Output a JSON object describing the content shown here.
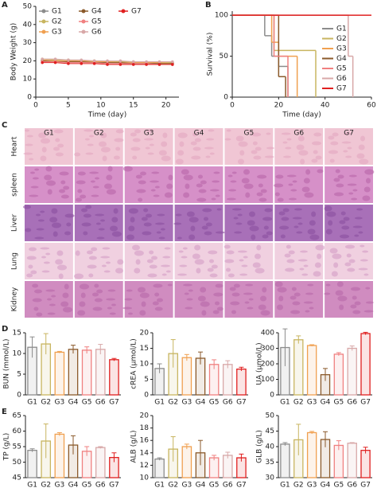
{
  "panel_labels": [
    "A",
    "B",
    "C",
    "D",
    "E"
  ],
  "histology": {
    "columns": [
      "G1",
      "G2",
      "G3",
      "G4",
      "G5",
      "G6",
      "G7"
    ],
    "rows": [
      "Heart",
      "spleen",
      "Liver",
      "Lung",
      "Kidney"
    ]
  },
  "chart_data": [
    {
      "type": "line",
      "xlabel": "Time (day)",
      "ylabel": "Body Weight (g)",
      "x": [
        1,
        3,
        5,
        7,
        9,
        11,
        13,
        15,
        17,
        19,
        21
      ],
      "xlim": [
        0,
        22
      ],
      "xticks": [
        0,
        5,
        10,
        15,
        20
      ],
      "ylim": [
        0,
        50
      ],
      "yticks": [
        0,
        10,
        20,
        30,
        40,
        50
      ],
      "series": [
        {
          "name": "G1",
          "color": "#8c8c8c",
          "values": [
            20,
            20,
            20,
            19.5,
            19.5,
            19,
            19,
            19,
            19,
            18.5,
            19
          ]
        },
        {
          "name": "G2",
          "color": "#c8b560",
          "values": [
            21,
            20.5,
            20.5,
            20,
            20,
            19.5,
            19.5,
            19.5,
            19,
            19,
            19
          ]
        },
        {
          "name": "G3",
          "color": "#f0a050",
          "values": [
            20.5,
            20,
            20,
            20,
            19.5,
            19.5,
            19,
            19,
            19,
            19,
            18.5
          ]
        },
        {
          "name": "G4",
          "color": "#8b5a2b",
          "values": [
            20,
            19.5,
            19.5,
            19.5,
            19,
            19,
            19,
            18.5,
            18.5,
            18.5,
            18.5
          ]
        },
        {
          "name": "G5",
          "color": "#f08080",
          "values": [
            19.5,
            19.5,
            19,
            19,
            19,
            18.5,
            18.5,
            18.5,
            18.5,
            18,
            18
          ]
        },
        {
          "name": "G6",
          "color": "#d8a8a8",
          "values": [
            21,
            21,
            20.5,
            20.5,
            20,
            20,
            20,
            19.5,
            19.5,
            19.5,
            19.5
          ]
        },
        {
          "name": "G7",
          "color": "#e02020",
          "values": [
            19,
            19,
            18.5,
            18.5,
            18.5,
            18,
            18,
            18,
            18,
            18,
            18
          ]
        }
      ]
    },
    {
      "type": "step",
      "xlabel": "Time (day)",
      "ylabel": "Survival (%)",
      "xlim": [
        0,
        60
      ],
      "xticks": [
        0,
        20,
        40,
        60
      ],
      "ylim": [
        0,
        105
      ],
      "yticks": [
        0,
        50,
        100
      ],
      "series": [
        {
          "name": "G1",
          "color": "#8c8c8c",
          "x": [
            0,
            14,
            17,
            20,
            24
          ],
          "values": [
            100,
            75,
            50,
            37.5,
            0
          ]
        },
        {
          "name": "G2",
          "color": "#c8b560",
          "x": [
            0,
            18,
            36
          ],
          "values": [
            100,
            57,
            0
          ]
        },
        {
          "name": "G3",
          "color": "#f0a050",
          "x": [
            0,
            17,
            20,
            28
          ],
          "values": [
            100,
            67,
            50,
            0
          ]
        },
        {
          "name": "G4",
          "color": "#8b5a2b",
          "x": [
            0,
            20,
            23
          ],
          "values": [
            100,
            25,
            0
          ]
        },
        {
          "name": "G5",
          "color": "#f08080",
          "x": [
            0,
            18,
            24
          ],
          "values": [
            100,
            50,
            0
          ]
        },
        {
          "name": "G6",
          "color": "#d8a8a8",
          "x": [
            0,
            50,
            52
          ],
          "values": [
            100,
            50,
            0
          ]
        },
        {
          "name": "G7",
          "color": "#e02020",
          "x": [
            0,
            60
          ],
          "values": [
            100,
            100
          ]
        }
      ]
    },
    {
      "type": "bar",
      "ylabel": "BUN (mmol/L)",
      "categories": [
        "G1",
        "G2",
        "G3",
        "G4",
        "G5",
        "G6",
        "G7"
      ],
      "colors": [
        "#8c8c8c",
        "#c8b560",
        "#f0a050",
        "#8b5a2b",
        "#f08080",
        "#d8a8a8",
        "#e02020"
      ],
      "values": [
        11.5,
        12.3,
        10.3,
        11,
        10.8,
        11,
        8.5
      ],
      "errors": [
        2.5,
        2.5,
        0.2,
        1,
        0.8,
        1.2,
        0.3
      ],
      "ylim": [
        0,
        15
      ],
      "yticks": [
        0,
        5,
        10,
        15
      ]
    },
    {
      "type": "bar",
      "ylabel": "cREA (μmol/L)",
      "categories": [
        "G1",
        "G2",
        "G3",
        "G4",
        "G5",
        "G6",
        "G7"
      ],
      "colors": [
        "#8c8c8c",
        "#c8b560",
        "#f0a050",
        "#8b5a2b",
        "#f08080",
        "#d8a8a8",
        "#e02020"
      ],
      "values": [
        8.5,
        13.3,
        12,
        11.8,
        9.8,
        9.8,
        8.3
      ],
      "errors": [
        1.5,
        4.5,
        1,
        2,
        1.5,
        1.2,
        0.6
      ],
      "ylim": [
        0,
        20
      ],
      "yticks": [
        0,
        5,
        10,
        15,
        20
      ]
    },
    {
      "type": "bar",
      "ylabel": "UA (μmol/L)",
      "categories": [
        "G1",
        "G2",
        "G3",
        "G4",
        "G5",
        "G6",
        "G7"
      ],
      "colors": [
        "#8c8c8c",
        "#c8b560",
        "#f0a050",
        "#8b5a2b",
        "#f08080",
        "#d8a8a8",
        "#e02020"
      ],
      "values": [
        305,
        355,
        318,
        130,
        262,
        300,
        395
      ],
      "errors": [
        120,
        25,
        5,
        40,
        10,
        15,
        8
      ],
      "ylim": [
        0,
        400
      ],
      "yticks": [
        0,
        100,
        200,
        300,
        400
      ]
    },
    {
      "type": "bar",
      "ylabel": "TP (g/L)",
      "categories": [
        "G1",
        "G2",
        "G3",
        "G4",
        "G5",
        "G6",
        "G7"
      ],
      "colors": [
        "#8c8c8c",
        "#c8b560",
        "#f0a050",
        "#8b5a2b",
        "#f08080",
        "#d8a8a8",
        "#e02020"
      ],
      "values": [
        53.8,
        56.8,
        59,
        55.5,
        53.5,
        54.7,
        51.5
      ],
      "errors": [
        0.5,
        5.5,
        0.5,
        3,
        1.5,
        0.3,
        1.5
      ],
      "ylim": [
        45,
        65
      ],
      "yticks": [
        45,
        50,
        55,
        60,
        65
      ]
    },
    {
      "type": "bar",
      "ylabel": "ALB (g/L)",
      "categories": [
        "G1",
        "G2",
        "G3",
        "G4",
        "G5",
        "G6",
        "G7"
      ],
      "colors": [
        "#8c8c8c",
        "#c8b560",
        "#f0a050",
        "#8b5a2b",
        "#f08080",
        "#d8a8a8",
        "#e02020"
      ],
      "values": [
        13,
        14.6,
        15,
        14,
        13.2,
        13.6,
        13.2
      ],
      "errors": [
        0.2,
        2,
        0.4,
        2,
        0.4,
        0.5,
        0.6
      ],
      "ylim": [
        10,
        20
      ],
      "yticks": [
        10,
        12,
        14,
        16,
        18,
        20
      ]
    },
    {
      "type": "bar",
      "ylabel": "GLB (g/L)",
      "categories": [
        "G1",
        "G2",
        "G3",
        "G4",
        "G5",
        "G6",
        "G7"
      ],
      "colors": [
        "#8c8c8c",
        "#c8b560",
        "#f0a050",
        "#8b5a2b",
        "#f08080",
        "#d8a8a8",
        "#e02020"
      ],
      "values": [
        40.8,
        42.2,
        44.5,
        42.3,
        40.4,
        41.1,
        38.8
      ],
      "errors": [
        0.5,
        5,
        0.4,
        2.5,
        1.5,
        0.2,
        1
      ],
      "ylim": [
        30,
        50
      ],
      "yticks": [
        30,
        35,
        40,
        45,
        50
      ]
    }
  ]
}
